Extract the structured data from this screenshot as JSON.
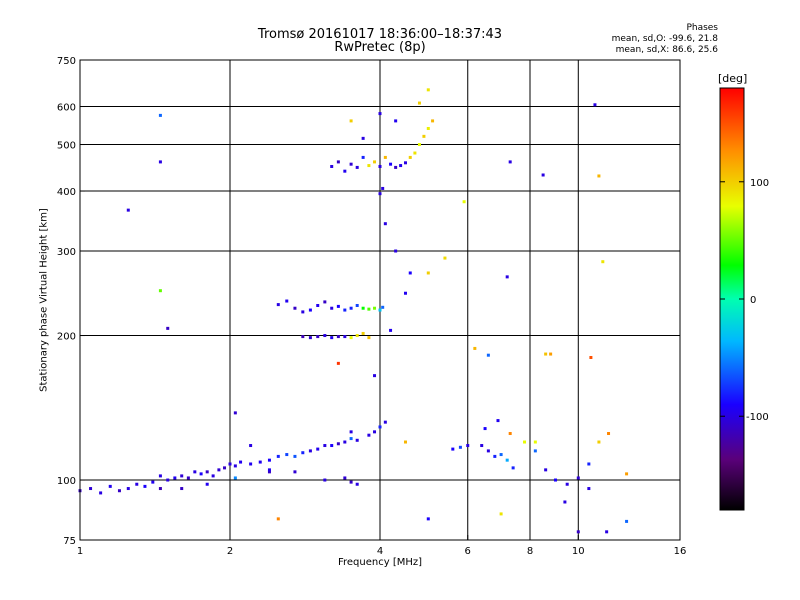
{
  "header": {
    "title_line1": "Tromsø 20161017 18:36:00–18:37:43",
    "title_line2": "RwPretec (8p)",
    "phase_heading": "Phases",
    "phase_stats_O": "mean, sd,O: -99.6, 21.8",
    "phase_stats_X": "mean, sd,X:  86.6, 25.6"
  },
  "colorbar": {
    "unit_label": "[deg]",
    "range": [
      -180,
      180
    ],
    "ticks": [
      {
        "value": 100,
        "label": "100"
      },
      {
        "value": 0,
        "label": "0"
      },
      {
        "value": -100,
        "label": "-100"
      }
    ]
  },
  "chart_data": {
    "type": "scatter",
    "xlabel": "Frequency [MHz]",
    "ylabel": "Stationary phase Virtual Height [km]",
    "x_scale": "log",
    "y_scale": "log",
    "xlim": [
      1,
      16
    ],
    "ylim": [
      75,
      750
    ],
    "x_ticks": [
      {
        "value": 1,
        "label": "1"
      },
      {
        "value": 2,
        "label": "2"
      },
      {
        "value": 4,
        "label": "4"
      },
      {
        "value": 6,
        "label": "6"
      },
      {
        "value": 8,
        "label": "8"
      },
      {
        "value": 10,
        "label": "10"
      },
      {
        "value": 16,
        "label": "16"
      }
    ],
    "y_ticks": [
      {
        "value": 75,
        "label": "75"
      },
      {
        "value": 100,
        "label": "100"
      },
      {
        "value": 200,
        "label": "200"
      },
      {
        "value": 300,
        "label": "300"
      },
      {
        "value": 400,
        "label": "400"
      },
      {
        "value": 500,
        "label": "500"
      },
      {
        "value": 600,
        "label": "600"
      },
      {
        "value": 750,
        "label": "750"
      }
    ],
    "grid": true,
    "grid_x": [
      2,
      4,
      6,
      8,
      10
    ],
    "grid_y": [
      100,
      200,
      300,
      400,
      500,
      600
    ],
    "color_scale": "rainbow, -180 to 180 deg",
    "points": [
      [
        1.0,
        95,
        -110
      ],
      [
        1.05,
        96,
        -105
      ],
      [
        1.1,
        94,
        -100
      ],
      [
        1.15,
        97,
        -95
      ],
      [
        1.2,
        95,
        -110
      ],
      [
        1.25,
        96,
        -100
      ],
      [
        1.3,
        98,
        -100
      ],
      [
        1.35,
        97,
        -90
      ],
      [
        1.4,
        99,
        -95
      ],
      [
        1.45,
        96,
        -115
      ],
      [
        1.5,
        100,
        -100
      ],
      [
        1.55,
        101,
        -95
      ],
      [
        1.6,
        102,
        -105
      ],
      [
        1.65,
        101,
        -110
      ],
      [
        1.7,
        104,
        -100
      ],
      [
        1.75,
        103,
        -90
      ],
      [
        1.8,
        104,
        -110
      ],
      [
        1.85,
        102,
        -100
      ],
      [
        1.9,
        105,
        -105
      ],
      [
        1.95,
        106,
        -110
      ],
      [
        2.0,
        108,
        -100
      ],
      [
        2.05,
        107,
        -100
      ],
      [
        2.1,
        109,
        -95
      ],
      [
        2.2,
        108,
        -95
      ],
      [
        2.3,
        109,
        -95
      ],
      [
        2.4,
        110,
        -90
      ],
      [
        2.5,
        112,
        -80
      ],
      [
        2.6,
        113,
        -70
      ],
      [
        2.7,
        112,
        -65
      ],
      [
        2.8,
        114,
        -80
      ],
      [
        2.9,
        115,
        -100
      ],
      [
        3.0,
        116,
        -95
      ],
      [
        3.1,
        118,
        -100
      ],
      [
        3.2,
        118,
        -90
      ],
      [
        3.3,
        119,
        -110
      ],
      [
        3.4,
        120,
        -100
      ],
      [
        3.5,
        122,
        -60
      ],
      [
        3.6,
        121,
        -100
      ],
      [
        3.8,
        124,
        -100
      ],
      [
        3.9,
        126,
        -100
      ],
      [
        4.0,
        129,
        -80
      ],
      [
        4.1,
        132,
        -100
      ],
      [
        1.45,
        102,
        -100
      ],
      [
        1.6,
        96,
        -110
      ],
      [
        1.8,
        98,
        -95
      ],
      [
        2.05,
        101,
        -50
      ],
      [
        2.4,
        104,
        -110
      ],
      [
        2.7,
        104,
        -105
      ],
      [
        3.1,
        100,
        -100
      ],
      [
        3.4,
        101,
        -105
      ],
      [
        3.5,
        99,
        -110
      ],
      [
        3.6,
        98,
        -100
      ],
      [
        2.5,
        232,
        -100
      ],
      [
        2.6,
        236,
        -95
      ],
      [
        2.7,
        228,
        -110
      ],
      [
        2.8,
        224,
        -100
      ],
      [
        2.9,
        226,
        -90
      ],
      [
        3.0,
        231,
        -95
      ],
      [
        3.1,
        235,
        -110
      ],
      [
        3.2,
        228,
        -100
      ],
      [
        3.3,
        230,
        -90
      ],
      [
        3.4,
        226,
        -80
      ],
      [
        3.5,
        228,
        -80
      ],
      [
        3.6,
        231,
        -70
      ],
      [
        3.7,
        228,
        30
      ],
      [
        3.8,
        227,
        45
      ],
      [
        3.9,
        228,
        55
      ],
      [
        4.0,
        226,
        -30
      ],
      [
        4.05,
        229,
        -60
      ],
      [
        2.8,
        199,
        -115
      ],
      [
        2.9,
        198,
        -105
      ],
      [
        3.0,
        199,
        -110
      ],
      [
        3.1,
        200,
        -100
      ],
      [
        3.2,
        198,
        -95
      ],
      [
        3.3,
        199,
        -110
      ],
      [
        3.4,
        199,
        -100
      ],
      [
        3.5,
        198,
        80
      ],
      [
        3.6,
        200,
        90
      ],
      [
        3.7,
        202,
        100
      ],
      [
        3.8,
        198,
        105
      ],
      [
        3.2,
        450,
        -100
      ],
      [
        3.3,
        460,
        -110
      ],
      [
        3.4,
        440,
        -95
      ],
      [
        3.5,
        455,
        -105
      ],
      [
        3.6,
        448,
        -100
      ],
      [
        3.7,
        470,
        -80
      ],
      [
        3.8,
        452,
        90
      ],
      [
        3.9,
        460,
        100
      ],
      [
        4.0,
        450,
        -100
      ],
      [
        4.1,
        470,
        110
      ],
      [
        4.2,
        455,
        -90
      ],
      [
        4.3,
        448,
        -110
      ],
      [
        4.4,
        452,
        -95
      ],
      [
        4.5,
        458,
        -100
      ],
      [
        4.6,
        470,
        100
      ],
      [
        4.7,
        480,
        90
      ],
      [
        4.8,
        500,
        80
      ],
      [
        4.9,
        520,
        100
      ],
      [
        5.0,
        540,
        85
      ],
      [
        5.1,
        560,
        110
      ],
      [
        3.5,
        560,
        100
      ],
      [
        3.7,
        515,
        -100
      ],
      [
        4.0,
        580,
        -100
      ],
      [
        4.05,
        405,
        -100
      ],
      [
        4.0,
        395,
        -100
      ],
      [
        4.3,
        560,
        -95
      ],
      [
        4.8,
        610,
        100
      ],
      [
        5.0,
        650,
        90
      ],
      [
        5.4,
        290,
        95
      ],
      [
        5.0,
        270,
        100
      ],
      [
        4.6,
        270,
        -90
      ],
      [
        4.3,
        300,
        -100
      ],
      [
        4.5,
        245,
        -95
      ],
      [
        5.9,
        380,
        80
      ],
      [
        6.0,
        118,
        -100
      ],
      [
        5.8,
        117,
        -70
      ],
      [
        5.6,
        116,
        -90
      ],
      [
        6.4,
        118,
        -100
      ],
      [
        6.6,
        115,
        -100
      ],
      [
        6.8,
        112,
        -80
      ],
      [
        7.0,
        113,
        -60
      ],
      [
        7.2,
        110,
        -40
      ],
      [
        7.4,
        106,
        -80
      ],
      [
        6.5,
        128,
        -90
      ],
      [
        6.9,
        133,
        -95
      ],
      [
        7.3,
        125,
        130
      ],
      [
        7.8,
        120,
        80
      ],
      [
        8.2,
        115,
        -60
      ],
      [
        8.6,
        105,
        -100
      ],
      [
        9.0,
        100,
        -90
      ],
      [
        9.5,
        98,
        -100
      ],
      [
        10.0,
        101,
        -105
      ],
      [
        10.5,
        108,
        -80
      ],
      [
        11.0,
        120,
        100
      ],
      [
        11.5,
        125,
        130
      ],
      [
        12.5,
        103,
        120
      ],
      [
        10.5,
        96,
        -100
      ],
      [
        1.25,
        365,
        -100
      ],
      [
        1.45,
        575,
        -60
      ],
      [
        1.45,
        460,
        -100
      ],
      [
        1.45,
        248,
        50
      ],
      [
        1.5,
        207,
        -110
      ],
      [
        2.05,
        138,
        -105
      ],
      [
        2.2,
        118,
        -100
      ],
      [
        2.4,
        105,
        -95
      ],
      [
        2.5,
        83,
        130
      ],
      [
        3.3,
        175,
        160
      ],
      [
        3.5,
        126,
        -100
      ],
      [
        3.9,
        165,
        -100
      ],
      [
        4.5,
        120,
        110
      ],
      [
        5.0,
        83,
        -90
      ],
      [
        6.2,
        188,
        110
      ],
      [
        6.6,
        182,
        -60
      ],
      [
        7.0,
        85,
        90
      ],
      [
        7.2,
        265,
        -100
      ],
      [
        7.3,
        460,
        -100
      ],
      [
        8.2,
        120,
        80
      ],
      [
        8.5,
        432,
        -100
      ],
      [
        8.6,
        183,
        105
      ],
      [
        8.8,
        183,
        120
      ],
      [
        9.4,
        90,
        -100
      ],
      [
        10.0,
        78,
        -110
      ],
      [
        10.6,
        180,
        150
      ],
      [
        10.8,
        605,
        -100
      ],
      [
        11.0,
        430,
        110
      ],
      [
        11.2,
        285,
        90
      ],
      [
        11.4,
        78,
        -100
      ],
      [
        12.5,
        82,
        -60
      ],
      [
        4.1,
        342,
        -100
      ],
      [
        4.2,
        205,
        -95
      ]
    ]
  }
}
